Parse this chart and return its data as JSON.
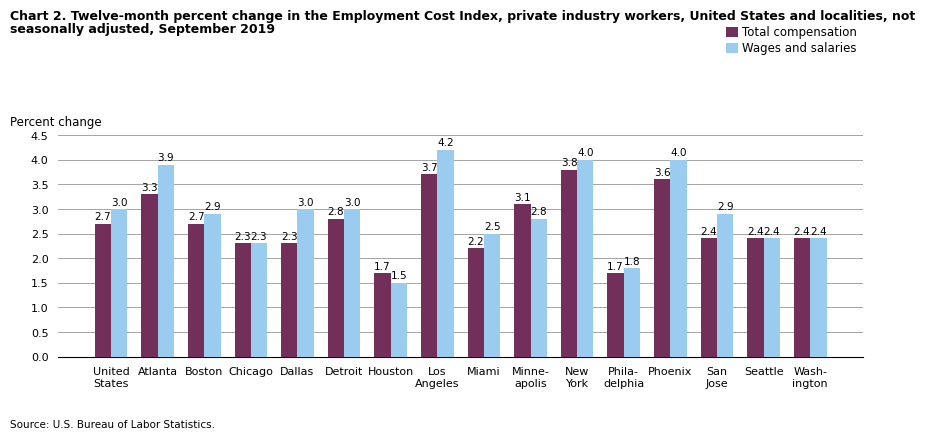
{
  "title_line1": "Chart 2. Twelve-month percent change in the Employment Cost Index, private industry workers, United States and localities, not",
  "title_line2": "seasonally adjusted, September 2019",
  "ylabel": "Percent change",
  "source": "Source: U.S. Bureau of Labor Statistics.",
  "categories": [
    "United\nStates",
    "Atlanta",
    "Boston",
    "Chicago",
    "Dallas",
    "Detroit",
    "Houston",
    "Los\nAngeles",
    "Miami",
    "Minne-\napolis",
    "New\nYork",
    "Phila-\ndelphia",
    "Phoenix",
    "San\nJose",
    "Seattle",
    "Wash-\nington"
  ],
  "total_compensation": [
    2.7,
    3.3,
    2.7,
    2.3,
    2.3,
    2.8,
    1.7,
    3.7,
    2.2,
    3.1,
    3.8,
    1.7,
    3.6,
    2.4,
    2.4,
    2.4
  ],
  "wages_and_salaries": [
    3.0,
    3.9,
    2.9,
    2.3,
    3.0,
    3.0,
    1.5,
    4.2,
    2.5,
    2.8,
    4.0,
    1.8,
    4.0,
    2.9,
    2.4,
    2.4
  ],
  "color_total": "#722F5A",
  "color_wages": "#99CCEE",
  "ylim": [
    0,
    4.5
  ],
  "yticks": [
    0.0,
    0.5,
    1.0,
    1.5,
    2.0,
    2.5,
    3.0,
    3.5,
    4.0,
    4.5
  ],
  "legend_labels": [
    "Total compensation",
    "Wages and salaries"
  ],
  "bar_width": 0.35,
  "title_fontsize": 9.0,
  "label_fontsize": 8.5,
  "tick_fontsize": 8.0,
  "value_fontsize": 7.5
}
